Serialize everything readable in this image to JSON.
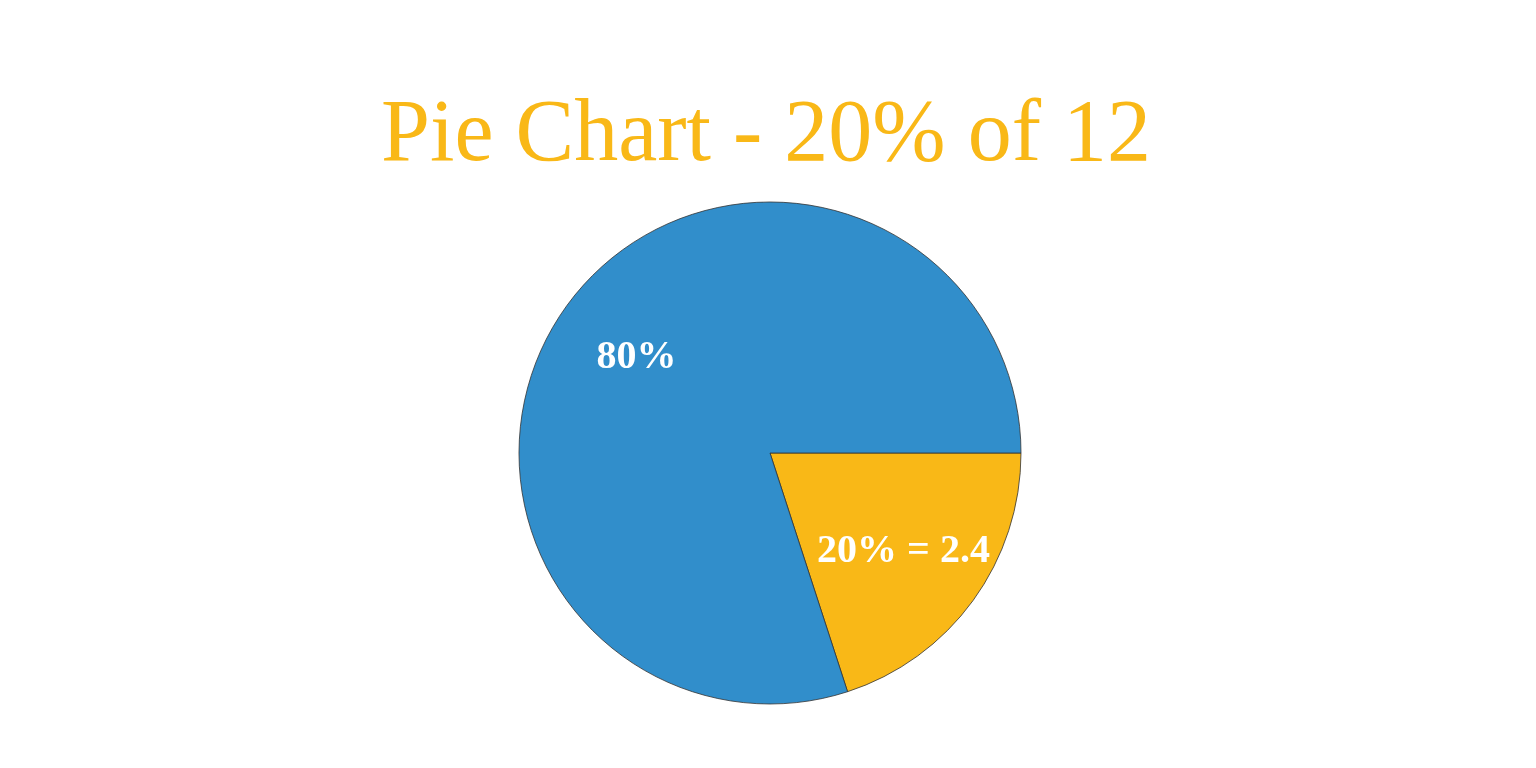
{
  "chart_data": {
    "type": "pie",
    "title": "Pie Chart - 20% of  12",
    "categories": [
      null,
      null
    ],
    "values": [
      20,
      80
    ],
    "colors": [
      "#f9b817",
      "#318ecb"
    ],
    "value_labels": [
      "20% = 2.4",
      "80%"
    ]
  }
}
